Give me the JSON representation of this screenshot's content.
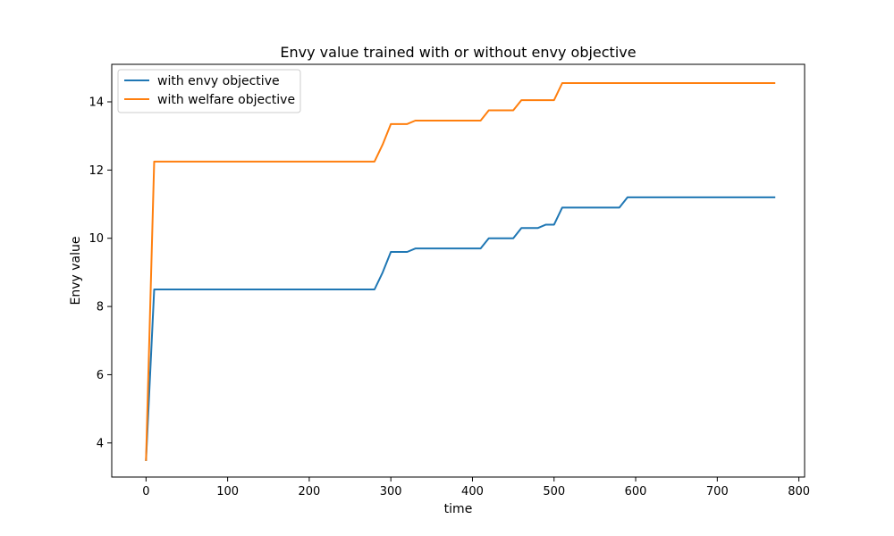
{
  "chart_data": {
    "type": "line",
    "title": "Envy value trained with or without envy objective",
    "xlabel": "time",
    "ylabel": "Envy value",
    "xlim": [
      -42,
      807
    ],
    "ylim": [
      3.0,
      15.1
    ],
    "xticks": [
      0,
      100,
      200,
      300,
      400,
      500,
      600,
      700,
      800
    ],
    "yticks": [
      4,
      6,
      8,
      10,
      12,
      14
    ],
    "grid": false,
    "legend_position": "top-left",
    "series": [
      {
        "name": "with envy objective",
        "color": "#1f77b4",
        "x": [
          0,
          10,
          280,
          290,
          300,
          320,
          330,
          410,
          420,
          450,
          460,
          480,
          490,
          500,
          510,
          580,
          590,
          770
        ],
        "y": [
          3.5,
          8.5,
          8.5,
          9.0,
          9.6,
          9.6,
          9.7,
          9.7,
          10.0,
          10.0,
          10.3,
          10.3,
          10.4,
          10.4,
          10.9,
          10.9,
          11.2,
          11.2
        ]
      },
      {
        "name": "with welfare objective",
        "color": "#ff7f0e",
        "x": [
          0,
          10,
          280,
          290,
          300,
          320,
          330,
          410,
          420,
          450,
          460,
          500,
          510,
          770
        ],
        "y": [
          3.5,
          12.25,
          12.25,
          12.75,
          13.35,
          13.35,
          13.45,
          13.45,
          13.75,
          13.75,
          14.05,
          14.05,
          14.55,
          14.55
        ]
      }
    ]
  }
}
